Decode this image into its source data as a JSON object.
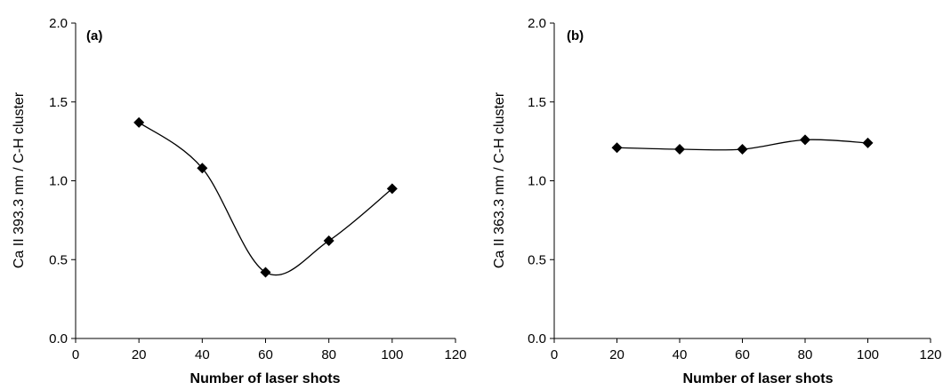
{
  "chart_data": [
    {
      "type": "line",
      "panel_label": "(a)",
      "xlabel": "Number of laser shots",
      "ylabel": "Ca II 393.3 nm / C-H cluster",
      "xlim": [
        0,
        120
      ],
      "ylim": [
        0.0,
        2.0
      ],
      "x_ticks": [
        "0",
        "20",
        "40",
        "60",
        "80",
        "100",
        "120"
      ],
      "y_ticks": [
        "0.0",
        "0.5",
        "1.0",
        "1.5",
        "2.0"
      ],
      "grid": false,
      "smooth": true,
      "marker": "diamond",
      "x": [
        20,
        40,
        60,
        80,
        100
      ],
      "values": [
        1.37,
        1.08,
        0.42,
        0.62,
        0.95
      ]
    },
    {
      "type": "line",
      "panel_label": "(b)",
      "xlabel": "Number of laser shots",
      "ylabel": "Ca II 363.3 nm / C-H cluster",
      "xlim": [
        0,
        120
      ],
      "ylim": [
        0.0,
        2.0
      ],
      "x_ticks": [
        "0",
        "20",
        "40",
        "60",
        "80",
        "100",
        "120"
      ],
      "y_ticks": [
        "0.0",
        "0.5",
        "1.0",
        "1.5",
        "2.0"
      ],
      "grid": false,
      "smooth": true,
      "marker": "diamond",
      "x": [
        20,
        40,
        60,
        80,
        100
      ],
      "values": [
        1.21,
        1.2,
        1.2,
        1.26,
        1.24
      ]
    }
  ]
}
